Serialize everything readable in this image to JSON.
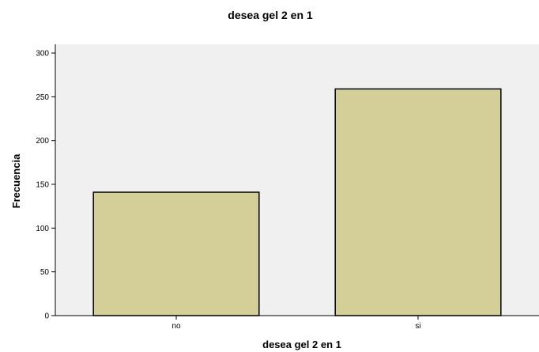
{
  "chart_data": {
    "type": "bar",
    "title": "desea gel 2 en 1",
    "xlabel": "desea gel 2 en 1",
    "ylabel": "Frecuencia",
    "categories": [
      "no",
      "si"
    ],
    "values": [
      141,
      259
    ],
    "ylim": [
      0,
      310
    ],
    "yticks": [
      0,
      50,
      100,
      150,
      200,
      250,
      300
    ],
    "grid": false,
    "legend": "none",
    "colors": {
      "bar_fill": "#d4cf98",
      "bar_stroke": "#000000",
      "plot_background": "#f0f0f0",
      "page_background": "#ffffff"
    }
  }
}
